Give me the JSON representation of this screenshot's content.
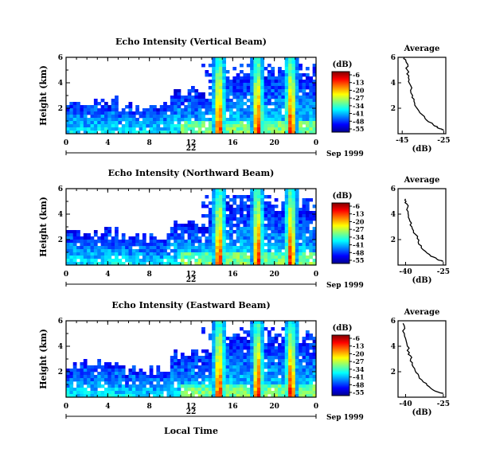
{
  "chart_data": [
    {
      "type": "heatmap",
      "title": "Echo Intensity (Vertical Beam)",
      "ylabel": "Height (km)",
      "ylim": [
        0,
        6
      ],
      "yticks": [
        "6",
        "4",
        "2"
      ],
      "xlim": [
        0,
        24
      ],
      "xticks": [
        "0",
        "4",
        "8",
        "12",
        "16",
        "20",
        "0"
      ],
      "date_day": "22",
      "date_label": "Sep 1999",
      "colorbar": {
        "unit": "(dB)",
        "ticks": [
          "-6",
          "-13",
          "-20",
          "-27",
          "-34",
          "-41",
          "-48",
          "-55"
        ]
      },
      "profile": {
        "title": "Average",
        "xlabel": "(dB)",
        "xticks": [
          "-45",
          "-25"
        ],
        "xlim": [
          -47,
          -24
        ],
        "yticks": [
          "6",
          "4",
          "2"
        ],
        "ylim": [
          0,
          6
        ],
        "points": [
          [
            -44,
            6.0
          ],
          [
            -43,
            5.6
          ],
          [
            -42.5,
            5.0
          ],
          [
            -42,
            4.4
          ],
          [
            -41,
            3.8
          ],
          [
            -40,
            3.0
          ],
          [
            -39,
            2.4
          ],
          [
            -37,
            1.8
          ],
          [
            -34,
            1.2
          ],
          [
            -30,
            0.7
          ],
          [
            -27,
            0.4
          ],
          [
            -25,
            0.3
          ]
        ]
      }
    },
    {
      "type": "heatmap",
      "title": "Echo Intensity (Northward Beam)",
      "ylabel": "Height (km)",
      "ylim": [
        0,
        6
      ],
      "yticks": [
        "6",
        "4",
        "2"
      ],
      "xlim": [
        0,
        24
      ],
      "xticks": [
        "0",
        "4",
        "8",
        "12",
        "16",
        "20",
        "0"
      ],
      "date_day": "22",
      "date_label": "Sep 1999",
      "colorbar": {
        "unit": "(dB)",
        "ticks": [
          "-6",
          "-13",
          "-20",
          "-27",
          "-34",
          "-41",
          "-48",
          "-55"
        ]
      },
      "profile": {
        "title": "Average",
        "xlabel": "(dB)",
        "xticks": [
          "-40",
          "-25"
        ],
        "xlim": [
          -43,
          -24
        ],
        "yticks": [
          "6",
          "4",
          "2"
        ],
        "ylim": [
          0,
          6
        ],
        "points": [
          [
            -40,
            5.2
          ],
          [
            -39.5,
            4.8
          ],
          [
            -39,
            4.2
          ],
          [
            -38.5,
            3.6
          ],
          [
            -37.5,
            3.0
          ],
          [
            -36,
            2.4
          ],
          [
            -35,
            1.8
          ],
          [
            -33,
            1.2
          ],
          [
            -30,
            0.7
          ],
          [
            -27,
            0.4
          ],
          [
            -25,
            0.3
          ]
        ]
      }
    },
    {
      "type": "heatmap",
      "title": "Echo Intensity (Eastward Beam)",
      "ylabel": "Height (km)",
      "ylim": [
        0,
        6
      ],
      "yticks": [
        "6",
        "4",
        "2"
      ],
      "xlim": [
        0,
        24
      ],
      "xticks": [
        "0",
        "4",
        "8",
        "12",
        "16",
        "20",
        "0"
      ],
      "date_day": "22",
      "date_label": "Sep 1999",
      "xlabel": "Local Time",
      "colorbar": {
        "unit": "(dB)",
        "ticks": [
          "-6",
          "-13",
          "-20",
          "-27",
          "-34",
          "-41",
          "-48",
          "-55"
        ]
      },
      "profile": {
        "title": "Average",
        "xlabel": "(dB)",
        "xticks": [
          "-40",
          "-25"
        ],
        "xlim": [
          -43,
          -24
        ],
        "yticks": [
          "6",
          "4",
          "2"
        ],
        "ylim": [
          0,
          6
        ],
        "points": [
          [
            -41,
            5.8
          ],
          [
            -40.5,
            5.0
          ],
          [
            -39.5,
            4.2
          ],
          [
            -38.5,
            3.5
          ],
          [
            -38,
            3.0
          ],
          [
            -37,
            2.4
          ],
          [
            -35,
            1.8
          ],
          [
            -33,
            1.2
          ],
          [
            -30,
            0.7
          ],
          [
            -27,
            0.4
          ],
          [
            -25,
            0.3
          ]
        ]
      }
    }
  ]
}
